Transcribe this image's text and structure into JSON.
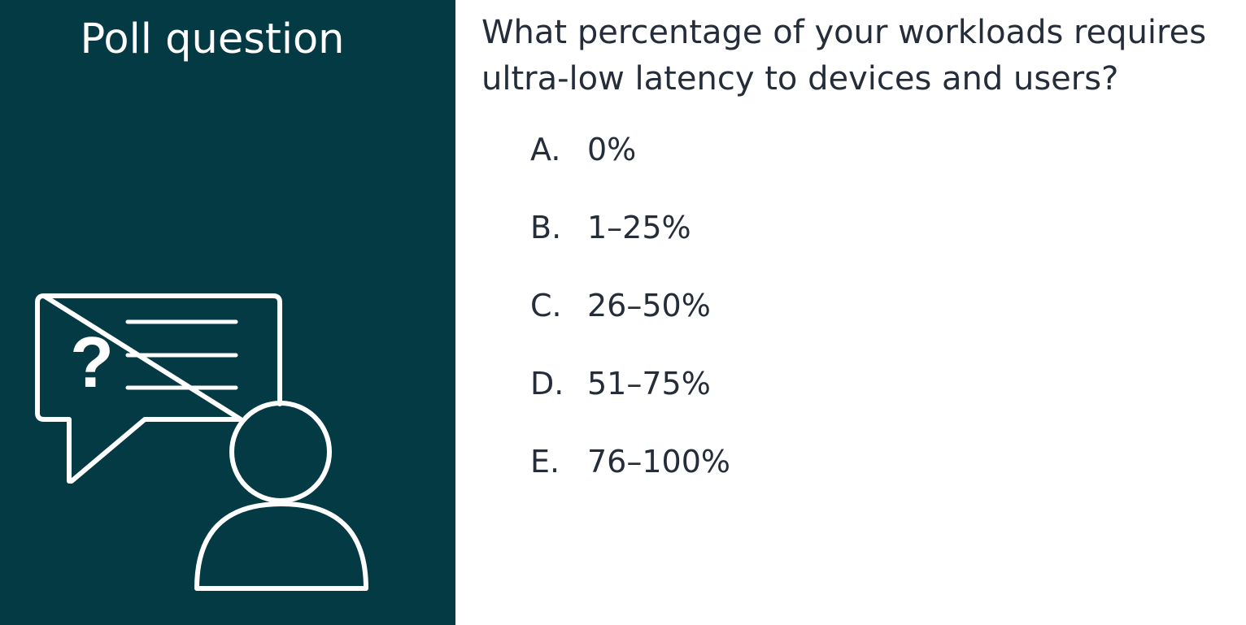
{
  "panel": {
    "title": "Poll question",
    "background_color": "#033A43",
    "icon_name": "person-with-question-speech-bubble-icon"
  },
  "question": {
    "text": "What percentage of your workloads requires ultra-low latency to devices and users?",
    "text_color": "#262d3a"
  },
  "options": [
    {
      "letter": "A.",
      "label": "0%"
    },
    {
      "letter": "B.",
      "label": "1–25%"
    },
    {
      "letter": "C.",
      "label": "26–50%"
    },
    {
      "letter": "D.",
      "label": "51–75%"
    },
    {
      "letter": "E.",
      "label": "76–100%"
    }
  ]
}
